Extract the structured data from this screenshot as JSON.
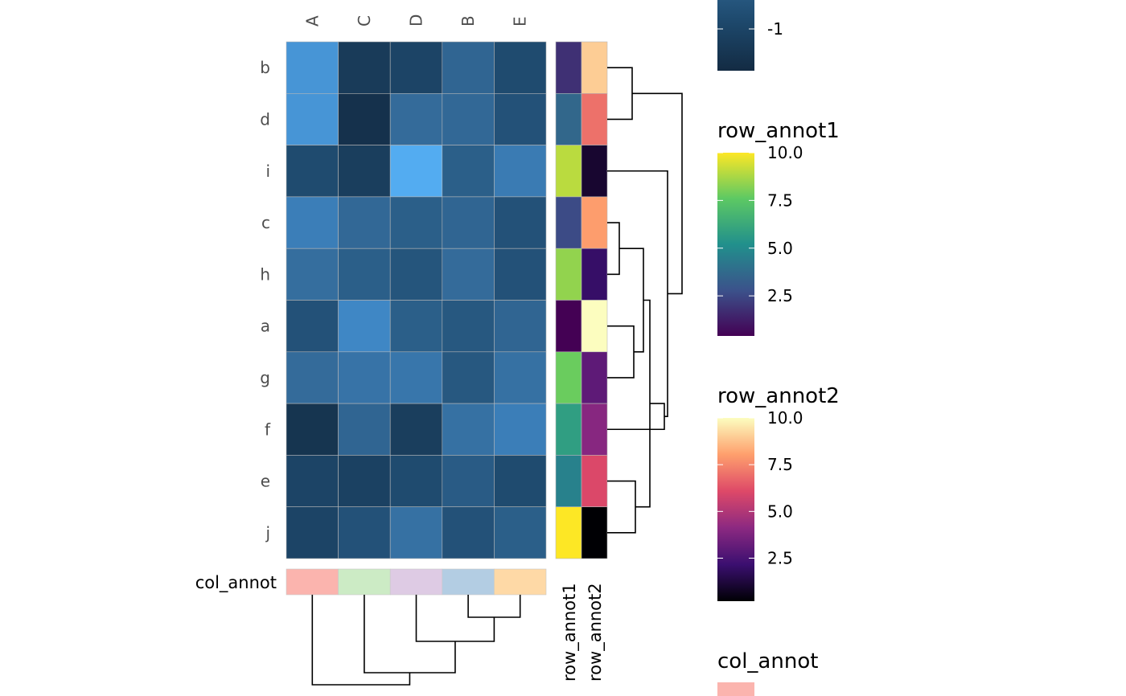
{
  "chart_data": {
    "type": "heatmap",
    "columns": [
      "A",
      "C",
      "D",
      "B",
      "E"
    ],
    "rows": [
      "b",
      "d",
      "i",
      "c",
      "h",
      "a",
      "g",
      "f",
      "e",
      "j"
    ],
    "values": [
      [
        1.5,
        -1.3,
        -1.0,
        0.0,
        -0.8
      ],
      [
        1.5,
        -1.6,
        0.2,
        0.1,
        -0.6
      ],
      [
        -0.8,
        -1.2,
        2.0,
        -0.2,
        0.8
      ],
      [
        0.9,
        0.1,
        -0.2,
        0.0,
        -0.6
      ],
      [
        0.3,
        -0.2,
        -0.5,
        0.2,
        -0.6
      ],
      [
        -0.6,
        1.2,
        -0.2,
        -0.4,
        0.0
      ],
      [
        0.2,
        0.5,
        0.6,
        -0.4,
        0.4
      ],
      [
        -1.5,
        0.0,
        -1.2,
        0.4,
        0.9
      ],
      [
        -1.0,
        -1.1,
        -0.8,
        -0.3,
        -0.8
      ],
      [
        -1.0,
        -0.6,
        0.4,
        -0.6,
        -0.2
      ]
    ],
    "color_scale": {
      "type": "continuous",
      "stops": [
        "#132B43",
        "#1E4A6E",
        "#336A98",
        "#3D84C1",
        "#56B1F7"
      ],
      "range": [
        -1.8,
        2.1
      ],
      "visible_ticks": [
        {
          "value": -1,
          "label": "-1"
        }
      ]
    },
    "row_annotations": [
      {
        "name": "row_annot1",
        "values": [
          1.8,
          3.6,
          9.0,
          2.6,
          8.4,
          0.4,
          7.8,
          5.8,
          4.6,
          10.0
        ],
        "palette": "viridis",
        "range": [
          0.4,
          10.0
        ],
        "ticks": [
          {
            "value": 2.5,
            "label": "2.5"
          },
          {
            "value": 5.0,
            "label": "5.0"
          },
          {
            "value": 7.5,
            "label": "7.5"
          },
          {
            "value": 10.0,
            "label": "10.0"
          }
        ]
      },
      {
        "name": "row_annot2",
        "values": [
          9.0,
          7.0,
          1.0,
          8.0,
          2.0,
          10.0,
          3.0,
          4.0,
          6.0,
          0.2
        ],
        "palette": "magma",
        "range": [
          0.2,
          10.0
        ],
        "ticks": [
          {
            "value": 2.5,
            "label": "2.5"
          },
          {
            "value": 5.0,
            "label": "5.0"
          },
          {
            "value": 7.5,
            "label": "7.5"
          },
          {
            "value": 10.0,
            "label": "10.0"
          }
        ]
      }
    ],
    "col_annotation": {
      "name": "col_annot",
      "colors": [
        "#FBB4AE",
        "#CCEBC5",
        "#DECBE4",
        "#B3CDE3",
        "#FED9A6"
      ]
    },
    "row_dendrogram_side": "right",
    "col_dendrogram_side": "bottom",
    "legend_position": "right"
  }
}
